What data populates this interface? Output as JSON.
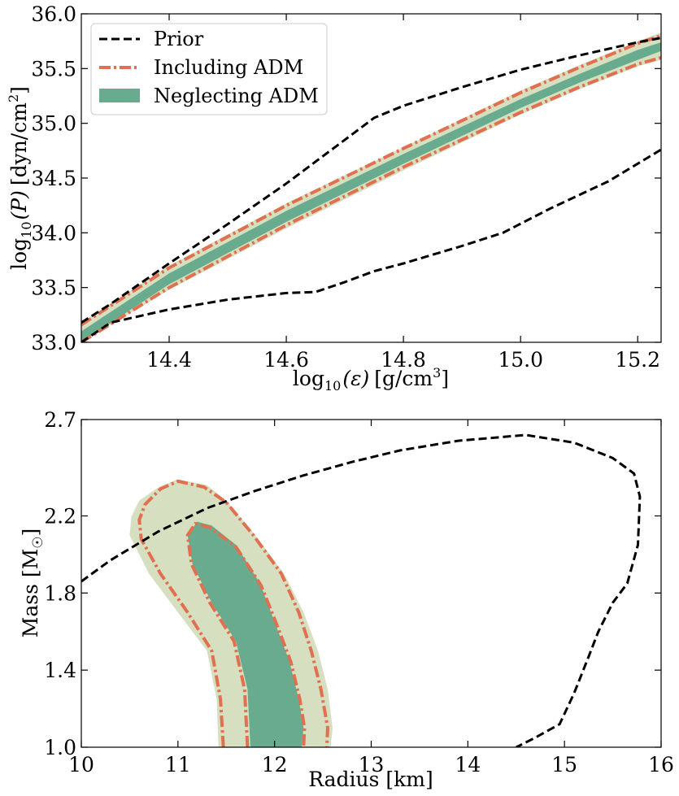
{
  "colors": {
    "prior": "#000000",
    "including": "#e07050",
    "neglecting": "#68ab8e",
    "light_band": "#d6dfbf"
  },
  "chart_data": [
    {
      "type": "line",
      "xlabel_base": "log",
      "xlabel_sub": "10",
      "xlabel_var": "(ε)",
      "xlabel_unit": "[g/cm",
      "xlabel_sup": "3",
      "xlabel_close": "]",
      "ylabel_base": "log",
      "ylabel_sub": "10",
      "ylabel_var": "(P)",
      "ylabel_unit": "[dyn/cm",
      "ylabel_sup": "2",
      "ylabel_close": "]",
      "xlim": [
        14.25,
        15.24
      ],
      "ylim": [
        33.0,
        36.0
      ],
      "xticks": [
        14.4,
        14.6,
        14.8,
        15.0,
        15.2
      ],
      "xtick_labels": [
        "14.4",
        "14.6",
        "14.8",
        "15.0",
        "15.2"
      ],
      "yticks": [
        33.0,
        33.5,
        34.0,
        34.5,
        35.0,
        35.5,
        36.0
      ],
      "ytick_labels": [
        "33.0",
        "33.5",
        "34.0",
        "34.5",
        "35.0",
        "35.5",
        "36.0"
      ],
      "legend": {
        "placement": "top-left",
        "entries": [
          {
            "label": "Prior",
            "style": "dashed"
          },
          {
            "label": "Including ADM",
            "style": "dashdot"
          },
          {
            "label": "Neglecting ADM",
            "style": "filled"
          }
        ]
      },
      "series": {
        "prior_upper": {
          "x": [
            14.25,
            14.3,
            14.4,
            14.5,
            14.6,
            14.7,
            14.75,
            14.8,
            14.9,
            15.0,
            15.1,
            15.2,
            15.24
          ],
          "y": [
            33.18,
            33.35,
            33.72,
            34.08,
            34.45,
            34.85,
            35.05,
            35.16,
            35.33,
            35.49,
            35.62,
            35.74,
            35.78
          ]
        },
        "prior_lower": {
          "x": [
            14.25,
            14.3,
            14.4,
            14.5,
            14.6,
            14.65,
            14.7,
            14.75,
            14.8,
            14.9,
            14.97,
            15.05,
            15.15,
            15.24
          ],
          "y": [
            33.0,
            33.18,
            33.3,
            33.39,
            33.45,
            33.46,
            33.55,
            33.65,
            33.72,
            33.88,
            34.0,
            34.22,
            34.47,
            34.76
          ]
        },
        "including_upper": {
          "x": [
            14.25,
            14.4,
            14.6,
            14.8,
            15.0,
            15.1,
            15.2,
            15.24
          ],
          "y": [
            33.16,
            33.68,
            34.25,
            34.77,
            35.28,
            35.51,
            35.73,
            35.8
          ]
        },
        "including_lower": {
          "x": [
            14.25,
            14.4,
            14.6,
            14.8,
            15.0,
            15.1,
            15.2,
            15.24
          ],
          "y": [
            33.0,
            33.5,
            34.07,
            34.6,
            35.1,
            35.33,
            35.54,
            35.6
          ]
        },
        "neglecting_band": {
          "x": [
            14.25,
            14.4,
            14.6,
            14.8,
            15.0,
            15.1,
            15.2,
            15.24
          ],
          "upper": [
            33.1,
            33.63,
            34.2,
            34.72,
            35.22,
            35.45,
            35.67,
            35.74
          ],
          "lower": [
            33.0,
            33.53,
            34.1,
            34.63,
            35.14,
            35.37,
            35.58,
            35.66
          ]
        },
        "light_band": {
          "x": [
            14.25,
            14.4,
            14.6,
            14.8,
            15.0,
            15.1,
            15.2,
            15.24
          ],
          "upper": [
            33.18,
            33.7,
            34.27,
            34.78,
            35.3,
            35.53,
            35.75,
            35.83
          ],
          "lower": [
            33.0,
            33.48,
            34.04,
            34.57,
            35.08,
            35.31,
            35.52,
            35.58
          ]
        }
      }
    },
    {
      "type": "line",
      "xlabel": "Radius [km]",
      "ylabel_base": "Mass [M",
      "ylabel_close": "]",
      "xlim": [
        10,
        16
      ],
      "ylim": [
        1.0,
        2.7
      ],
      "xticks": [
        10,
        11,
        12,
        13,
        14,
        15,
        16
      ],
      "xtick_labels": [
        "10",
        "11",
        "12",
        "13",
        "14",
        "15",
        "16"
      ],
      "yticks": [
        1.0,
        1.4,
        1.8,
        2.2,
        2.7
      ],
      "ytick_labels": [
        "1.0",
        "1.4",
        "1.8",
        "2.2",
        "2.7"
      ],
      "series": {
        "prior_contour": {
          "x": [
            10.0,
            10.3,
            10.8,
            11.3,
            11.8,
            12.3,
            12.8,
            13.3,
            13.9,
            14.6,
            15.1,
            15.5,
            15.72,
            15.78,
            15.76,
            15.65,
            15.5,
            15.35,
            15.25,
            15.1,
            14.95,
            14.7,
            14.5
          ],
          "y": [
            1.86,
            1.97,
            2.12,
            2.24,
            2.33,
            2.41,
            2.48,
            2.54,
            2.59,
            2.62,
            2.58,
            2.5,
            2.42,
            2.3,
            2.05,
            1.85,
            1.75,
            1.6,
            1.47,
            1.28,
            1.12,
            1.05,
            1.0
          ]
        },
        "light_region": {
          "x": [
            11.42,
            11.4,
            11.3,
            11.0,
            10.7,
            10.5,
            10.52,
            10.6,
            10.8,
            11.0,
            11.3,
            11.5,
            11.8,
            12.1,
            12.3,
            12.45,
            12.55,
            12.6,
            12.58
          ],
          "y": [
            1.0,
            1.25,
            1.5,
            1.7,
            1.9,
            2.1,
            2.2,
            2.28,
            2.35,
            2.39,
            2.36,
            2.28,
            2.1,
            1.9,
            1.7,
            1.5,
            1.3,
            1.1,
            1.0
          ]
        },
        "including_outer": {
          "x": [
            11.47,
            11.44,
            11.35,
            11.1,
            10.82,
            10.62,
            10.6,
            10.66,
            10.82,
            11.0,
            11.27,
            11.5,
            11.78,
            12.07,
            12.25,
            12.38,
            12.48,
            12.55,
            12.54
          ],
          "y": [
            1.0,
            1.25,
            1.5,
            1.7,
            1.9,
            2.08,
            2.18,
            2.26,
            2.34,
            2.38,
            2.35,
            2.27,
            2.1,
            1.9,
            1.7,
            1.5,
            1.3,
            1.1,
            1.0
          ]
        },
        "neglecting_region": {
          "x": [
            11.75,
            11.72,
            11.6,
            11.35,
            11.15,
            11.1,
            11.2,
            11.35,
            11.6,
            11.85,
            12.0,
            12.15,
            12.25,
            12.3,
            12.28
          ],
          "y": [
            1.0,
            1.3,
            1.55,
            1.75,
            1.95,
            2.1,
            2.17,
            2.15,
            2.05,
            1.85,
            1.65,
            1.45,
            1.25,
            1.1,
            1.0
          ]
        },
        "including_inner": {
          "x": [
            11.72,
            11.69,
            11.58,
            11.33,
            11.14,
            11.1,
            11.18,
            11.33,
            11.6,
            11.86,
            12.02,
            12.17,
            12.26,
            12.31,
            12.3
          ],
          "y": [
            1.0,
            1.3,
            1.55,
            1.75,
            1.95,
            2.1,
            2.16,
            2.14,
            2.04,
            1.84,
            1.64,
            1.44,
            1.25,
            1.1,
            1.0
          ]
        }
      }
    }
  ]
}
